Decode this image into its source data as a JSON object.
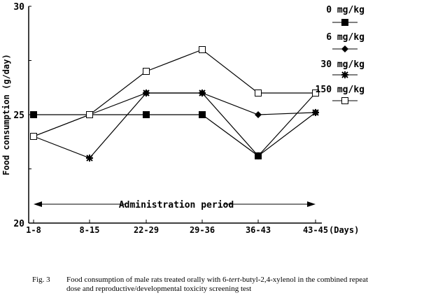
{
  "chart_data": {
    "type": "line",
    "ylabel": "Food consumption (g/day)",
    "xunit": "(Days)",
    "categories": [
      "1-8",
      "8-15",
      "22-29",
      "29-36",
      "36-43",
      "43-45"
    ],
    "ylim": [
      20,
      30
    ],
    "yticks": [
      20,
      25,
      30
    ],
    "grid": false,
    "legend": "right",
    "annotation": "Administration period",
    "series": [
      {
        "name": "0 mg/kg",
        "marker": "filled-square",
        "values": [
          25.0,
          25.0,
          25.0,
          25.0,
          23.1,
          26.0
        ]
      },
      {
        "name": "6 mg/kg",
        "marker": "filled-diamond",
        "values": [
          24.0,
          25.0,
          26.0,
          26.0,
          25.0,
          25.1
        ]
      },
      {
        "name": "30 mg/kg",
        "marker": "star",
        "values": [
          24.0,
          23.0,
          26.0,
          26.0,
          23.1,
          25.1
        ]
      },
      {
        "name": "150 mg/kg",
        "marker": "open-square",
        "values": [
          24.0,
          25.0,
          27.0,
          28.0,
          26.0,
          26.0
        ]
      }
    ]
  },
  "caption": {
    "label": "Fig. 3",
    "text_before": "Food consumption of male rats treated orally with 6-",
    "italic": "tert",
    "text_after": "-butyl-2,4-xylenol in the combined repeat",
    "line2": "dose and reproductive/developmental toxicity screening test"
  }
}
